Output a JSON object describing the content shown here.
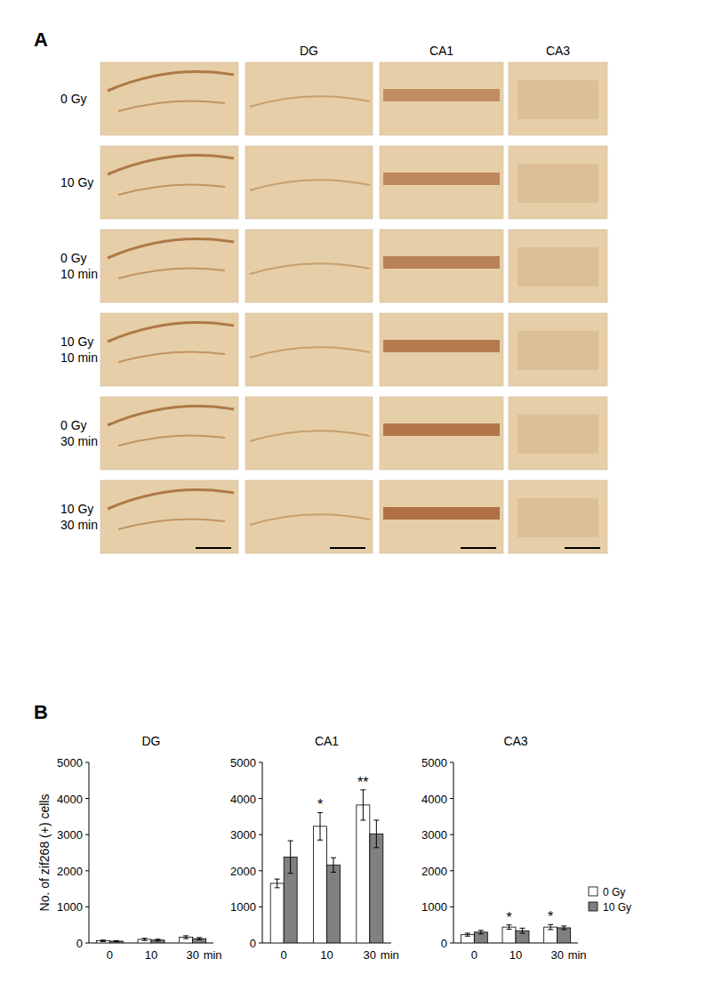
{
  "panel_a": {
    "label": "A",
    "columns": [
      "DG",
      "CA1",
      "CA3"
    ],
    "rows": [
      [
        "0 Gy"
      ],
      [
        "10 Gy"
      ],
      [
        "0 Gy",
        "10 min"
      ],
      [
        "10 Gy",
        "10 min"
      ],
      [
        "0 Gy",
        "30 min"
      ],
      [
        "10 Gy",
        "30 min"
      ]
    ]
  },
  "panel_b": {
    "label": "B"
  },
  "chart_data": [
    {
      "type": "bar",
      "title": "DG",
      "y_label": "No. of zif268 (+) cells",
      "x_label": "min",
      "categories": [
        "0",
        "10",
        "30"
      ],
      "series": [
        {
          "name": "0 Gy",
          "color": "#ffffff",
          "values": [
            60,
            100,
            160
          ],
          "errors": [
            20,
            30,
            40
          ]
        },
        {
          "name": "10 Gy",
          "color": "#808080",
          "values": [
            50,
            80,
            120
          ],
          "errors": [
            15,
            25,
            30
          ]
        }
      ],
      "ylim": [
        0,
        5000
      ],
      "yticks": [
        0,
        1000,
        2000,
        3000,
        4000,
        5000
      ],
      "grid": false,
      "annotations": []
    },
    {
      "type": "bar",
      "title": "CA1",
      "x_label": "min",
      "categories": [
        "0",
        "10",
        "30"
      ],
      "series": [
        {
          "name": "0 Gy",
          "color": "#ffffff",
          "values": [
            1650,
            3230,
            3820
          ],
          "errors": [
            120,
            380,
            420
          ]
        },
        {
          "name": "10 Gy",
          "color": "#808080",
          "values": [
            2380,
            2160,
            3020
          ],
          "errors": [
            450,
            200,
            380
          ]
        }
      ],
      "ylim": [
        0,
        5000
      ],
      "yticks": [
        0,
        1000,
        2000,
        3000,
        4000,
        5000
      ],
      "grid": false,
      "annotations": [
        {
          "category": "10",
          "series": "0 Gy",
          "text": "*"
        },
        {
          "category": "30",
          "series": "0 Gy",
          "text": "**"
        }
      ]
    },
    {
      "type": "bar",
      "title": "CA3",
      "x_label": "min",
      "categories": [
        "0",
        "10",
        "30"
      ],
      "series": [
        {
          "name": "0 Gy",
          "color": "#ffffff",
          "values": [
            230,
            440,
            440
          ],
          "errors": [
            40,
            60,
            70
          ]
        },
        {
          "name": "10 Gy",
          "color": "#808080",
          "values": [
            300,
            340,
            420
          ],
          "errors": [
            50,
            70,
            50
          ]
        }
      ],
      "ylim": [
        0,
        5000
      ],
      "yticks": [
        0,
        1000,
        2000,
        3000,
        4000,
        5000
      ],
      "grid": false,
      "legend": "right",
      "annotations": [
        {
          "category": "10",
          "series": "0 Gy",
          "text": "*"
        },
        {
          "category": "30",
          "series": "0 Gy",
          "text": "*"
        }
      ]
    }
  ]
}
